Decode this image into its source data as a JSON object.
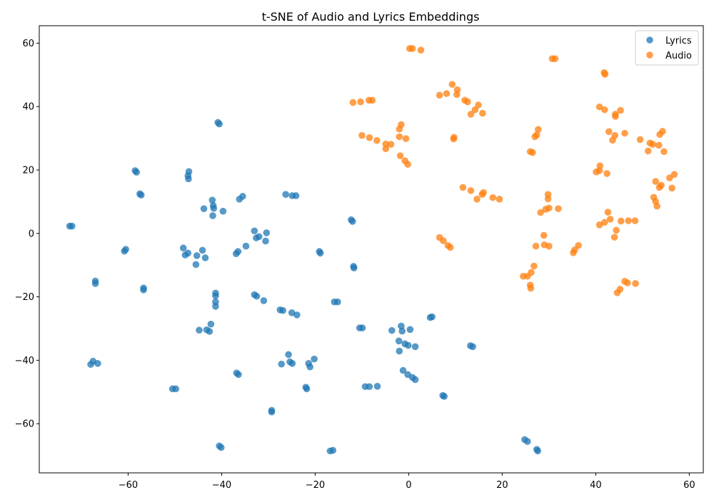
{
  "chart_data": {
    "type": "scatter",
    "title": "t-SNE of Audio and Lyrics Embeddings",
    "xlabel": "",
    "ylabel": "",
    "xlim": [
      -79,
      63
    ],
    "ylim": [
      -75.5,
      65.5
    ],
    "xticks": [
      -60,
      -40,
      -20,
      0,
      20,
      40,
      60
    ],
    "yticks": [
      -60,
      -40,
      -20,
      0,
      20,
      40,
      60
    ],
    "grid": false,
    "legend_position": "top-right",
    "series": [
      {
        "name": "Lyrics",
        "color": "#1f77b4",
        "points": [
          [
            -72.5,
            2.3
          ],
          [
            -72,
            2.3
          ],
          [
            -67,
            -15
          ],
          [
            -67,
            -15.8
          ],
          [
            -67.5,
            -40.3
          ],
          [
            -68,
            -41.3
          ],
          [
            -66.5,
            -41
          ],
          [
            -60.5,
            -5
          ],
          [
            -60.8,
            -5.6
          ],
          [
            -58.5,
            19.8
          ],
          [
            -58.2,
            19.3
          ],
          [
            -57.5,
            12.5
          ],
          [
            -57.2,
            12.1
          ],
          [
            -56.7,
            -17.2
          ],
          [
            -56.7,
            -17.8
          ],
          [
            -50.5,
            -49
          ],
          [
            -49.8,
            -49
          ],
          [
            -48.2,
            -4.6
          ],
          [
            -47.8,
            -6.8
          ],
          [
            -47.2,
            -6.2
          ],
          [
            -47,
            19.5
          ],
          [
            -47.2,
            18.2
          ],
          [
            -47.1,
            17.2
          ],
          [
            -45.5,
            -9.8
          ],
          [
            -45.3,
            -7
          ],
          [
            -44.8,
            -30.5
          ],
          [
            -44.1,
            -5.3
          ],
          [
            -43.8,
            7.8
          ],
          [
            -43.5,
            -7.7
          ],
          [
            -43.2,
            -30.4
          ],
          [
            -42.6,
            -30.9
          ],
          [
            -42.3,
            -28.6
          ],
          [
            -42,
            10.5
          ],
          [
            -41.8,
            8.8
          ],
          [
            -41.7,
            7.9
          ],
          [
            -41.9,
            5.6
          ],
          [
            -41.3,
            -18.8
          ],
          [
            -41.3,
            -19.7
          ],
          [
            -41.3,
            -21.6
          ],
          [
            -41.3,
            -23
          ],
          [
            -40.8,
            35
          ],
          [
            -40.5,
            34.5
          ],
          [
            -40.5,
            -67
          ],
          [
            -40.1,
            -67.5
          ],
          [
            -39.7,
            7
          ],
          [
            -36.8,
            -44
          ],
          [
            -36.4,
            -44.5
          ],
          [
            -36.2,
            10.8
          ],
          [
            -35.5,
            11.7
          ],
          [
            -36.9,
            -6.4
          ],
          [
            -36.5,
            -5.7
          ],
          [
            -34.8,
            -4
          ],
          [
            -33,
            0.8
          ],
          [
            -32.6,
            -1.4
          ],
          [
            -32,
            -1
          ],
          [
            -33,
            -19.3
          ],
          [
            -32.5,
            -19.8
          ],
          [
            -31,
            -21.2
          ],
          [
            -30.4,
            0.2
          ],
          [
            -30.6,
            -2.4
          ],
          [
            -29.3,
            -55.8
          ],
          [
            -29.3,
            -56.3
          ],
          [
            -27.5,
            -24.1
          ],
          [
            -26.9,
            -24.3
          ],
          [
            -27.2,
            -41.2
          ],
          [
            -26.3,
            12.3
          ],
          [
            -24.9,
            11.9
          ],
          [
            -24.1,
            11.9
          ],
          [
            -25.7,
            -38.2
          ],
          [
            -25.4,
            -40.5
          ],
          [
            -24.9,
            -41
          ],
          [
            -25,
            -25
          ],
          [
            -23.9,
            -25.7
          ],
          [
            -22,
            -48.5
          ],
          [
            -21.8,
            -49
          ],
          [
            -21.4,
            -41
          ],
          [
            -21.1,
            -42.1
          ],
          [
            -20.2,
            -39.6
          ],
          [
            -19.1,
            -5.7
          ],
          [
            -18.9,
            -6.2
          ],
          [
            -16.8,
            -68.6
          ],
          [
            -16.2,
            -68.4
          ],
          [
            -15.9,
            -21.6
          ],
          [
            -15.2,
            -21.6
          ],
          [
            -12.3,
            4.3
          ],
          [
            -12,
            3.8
          ],
          [
            -11.8,
            -10.4
          ],
          [
            -11.7,
            -10.9
          ],
          [
            -10.5,
            -29.8
          ],
          [
            -9.9,
            -29.8
          ],
          [
            -9.3,
            -48.3
          ],
          [
            -8.4,
            -48.3
          ],
          [
            -6.7,
            -48.2
          ],
          [
            -3.6,
            -30.6
          ],
          [
            -2.1,
            -33.9
          ],
          [
            -2,
            -37.1
          ],
          [
            -1.6,
            -29.2
          ],
          [
            -1.4,
            -30.8
          ],
          [
            -1.2,
            -43.2
          ],
          [
            -0.8,
            -34.8
          ],
          [
            -0.1,
            -35.3
          ],
          [
            -0.2,
            -44.5
          ],
          [
            0.3,
            -30.3
          ],
          [
            0.8,
            -45.4
          ],
          [
            1.4,
            -46.1
          ],
          [
            1.4,
            -35.7
          ],
          [
            4.6,
            -26.5
          ],
          [
            5,
            -26.3
          ],
          [
            7.3,
            -51.1
          ],
          [
            7.6,
            -51.4
          ],
          [
            13.2,
            -35.4
          ],
          [
            13.7,
            -35.7
          ],
          [
            24.8,
            -65
          ],
          [
            25.4,
            -65.6
          ],
          [
            27.4,
            -68.1
          ],
          [
            27.6,
            -68.6
          ]
        ]
      },
      {
        "name": "Audio",
        "color": "#ff7f0e",
        "points": [
          [
            0.2,
            58.3
          ],
          [
            0.8,
            58.3
          ],
          [
            2.6,
            57.8
          ],
          [
            30.7,
            55.1
          ],
          [
            31.3,
            55.1
          ],
          [
            41.8,
            50.7
          ],
          [
            42,
            50.2
          ],
          [
            9.3,
            47
          ],
          [
            10.4,
            45.3
          ],
          [
            6.6,
            43.6
          ],
          [
            8.1,
            44.1
          ],
          [
            10.3,
            43.8
          ],
          [
            12,
            42
          ],
          [
            12.6,
            41.5
          ],
          [
            14.9,
            40.5
          ],
          [
            14.2,
            39
          ],
          [
            13.3,
            37.6
          ],
          [
            15.8,
            37.9
          ],
          [
            -11.9,
            41.3
          ],
          [
            -10.3,
            41.5
          ],
          [
            -8.5,
            42
          ],
          [
            -7.8,
            42
          ],
          [
            -10,
            30.9
          ],
          [
            -8.4,
            30.2
          ],
          [
            -6.8,
            29.3
          ],
          [
            -4.9,
            28.2
          ],
          [
            -3.8,
            28.1
          ],
          [
            -4.9,
            26.7
          ],
          [
            -2,
            30.5
          ],
          [
            -2,
            32.9
          ],
          [
            -1.6,
            34.3
          ],
          [
            -0.6,
            29.9
          ],
          [
            -1.8,
            24.5
          ],
          [
            -0.8,
            22.9
          ],
          [
            -0.2,
            21.8
          ],
          [
            9.6,
            29.8
          ],
          [
            9.7,
            30.3
          ],
          [
            11.6,
            14.5
          ],
          [
            13.3,
            13.5
          ],
          [
            14.6,
            10.8
          ],
          [
            15.7,
            12.3
          ],
          [
            16,
            12.9
          ],
          [
            18,
            11.3
          ],
          [
            19.4,
            10.8
          ],
          [
            6.6,
            -1.3
          ],
          [
            7.4,
            -2.3
          ],
          [
            8.4,
            -3.8
          ],
          [
            8.9,
            -4.4
          ],
          [
            26,
            25.8
          ],
          [
            26.5,
            25.5
          ],
          [
            27,
            30.5
          ],
          [
            27.4,
            31.1
          ],
          [
            27.7,
            32.8
          ],
          [
            28.9,
            -0.6
          ],
          [
            29,
            -3.6
          ],
          [
            30,
            -4
          ],
          [
            27.2,
            -4
          ],
          [
            28.2,
            6.6
          ],
          [
            29.3,
            7.6
          ],
          [
            30,
            8
          ],
          [
            29.8,
            10.9
          ],
          [
            29.8,
            12.3
          ],
          [
            32,
            7.8
          ],
          [
            26.8,
            -10.3
          ],
          [
            26.2,
            -12.3
          ],
          [
            26,
            -16.3
          ],
          [
            26.1,
            -17.3
          ],
          [
            24.5,
            -13.5
          ],
          [
            25.4,
            -13.5
          ],
          [
            36.3,
            -3.8
          ],
          [
            35.5,
            -5.2
          ],
          [
            35.2,
            -6.1
          ],
          [
            40.8,
            39.9
          ],
          [
            41.9,
            39
          ],
          [
            42.8,
            32.1
          ],
          [
            44.1,
            30.9
          ],
          [
            43.6,
            29.4
          ],
          [
            44.2,
            37.6
          ],
          [
            44.2,
            36.9
          ],
          [
            45.3,
            38.8
          ],
          [
            46.2,
            31.6
          ],
          [
            40.1,
            19.4
          ],
          [
            40.8,
            19.8
          ],
          [
            40.9,
            21.3
          ],
          [
            42.4,
            18.9
          ],
          [
            40.8,
            2.7
          ],
          [
            41.9,
            3.5
          ],
          [
            42.6,
            6.7
          ],
          [
            43.1,
            4.5
          ],
          [
            44.4,
            1
          ],
          [
            44,
            -1.2
          ],
          [
            45.4,
            3.9
          ],
          [
            47,
            4
          ],
          [
            48.4,
            4
          ],
          [
            45.2,
            -17.6
          ],
          [
            44.6,
            -18.7
          ],
          [
            46.2,
            -15.1
          ],
          [
            46.8,
            -15.6
          ],
          [
            48.5,
            -15.8
          ],
          [
            49.5,
            29.6
          ],
          [
            51.2,
            26
          ],
          [
            51.6,
            28.5
          ],
          [
            52.2,
            28.1
          ],
          [
            53.5,
            27.8
          ],
          [
            53.7,
            31.2
          ],
          [
            54.3,
            32.2
          ],
          [
            54.6,
            25.8
          ],
          [
            52.8,
            16.4
          ],
          [
            53.6,
            14.5
          ],
          [
            54,
            15.2
          ],
          [
            52.4,
            11.4
          ],
          [
            52.8,
            10.1
          ],
          [
            53.1,
            8.6
          ],
          [
            55.8,
            17.5
          ],
          [
            56.3,
            14.3
          ],
          [
            56.8,
            18.6
          ]
        ]
      }
    ]
  }
}
